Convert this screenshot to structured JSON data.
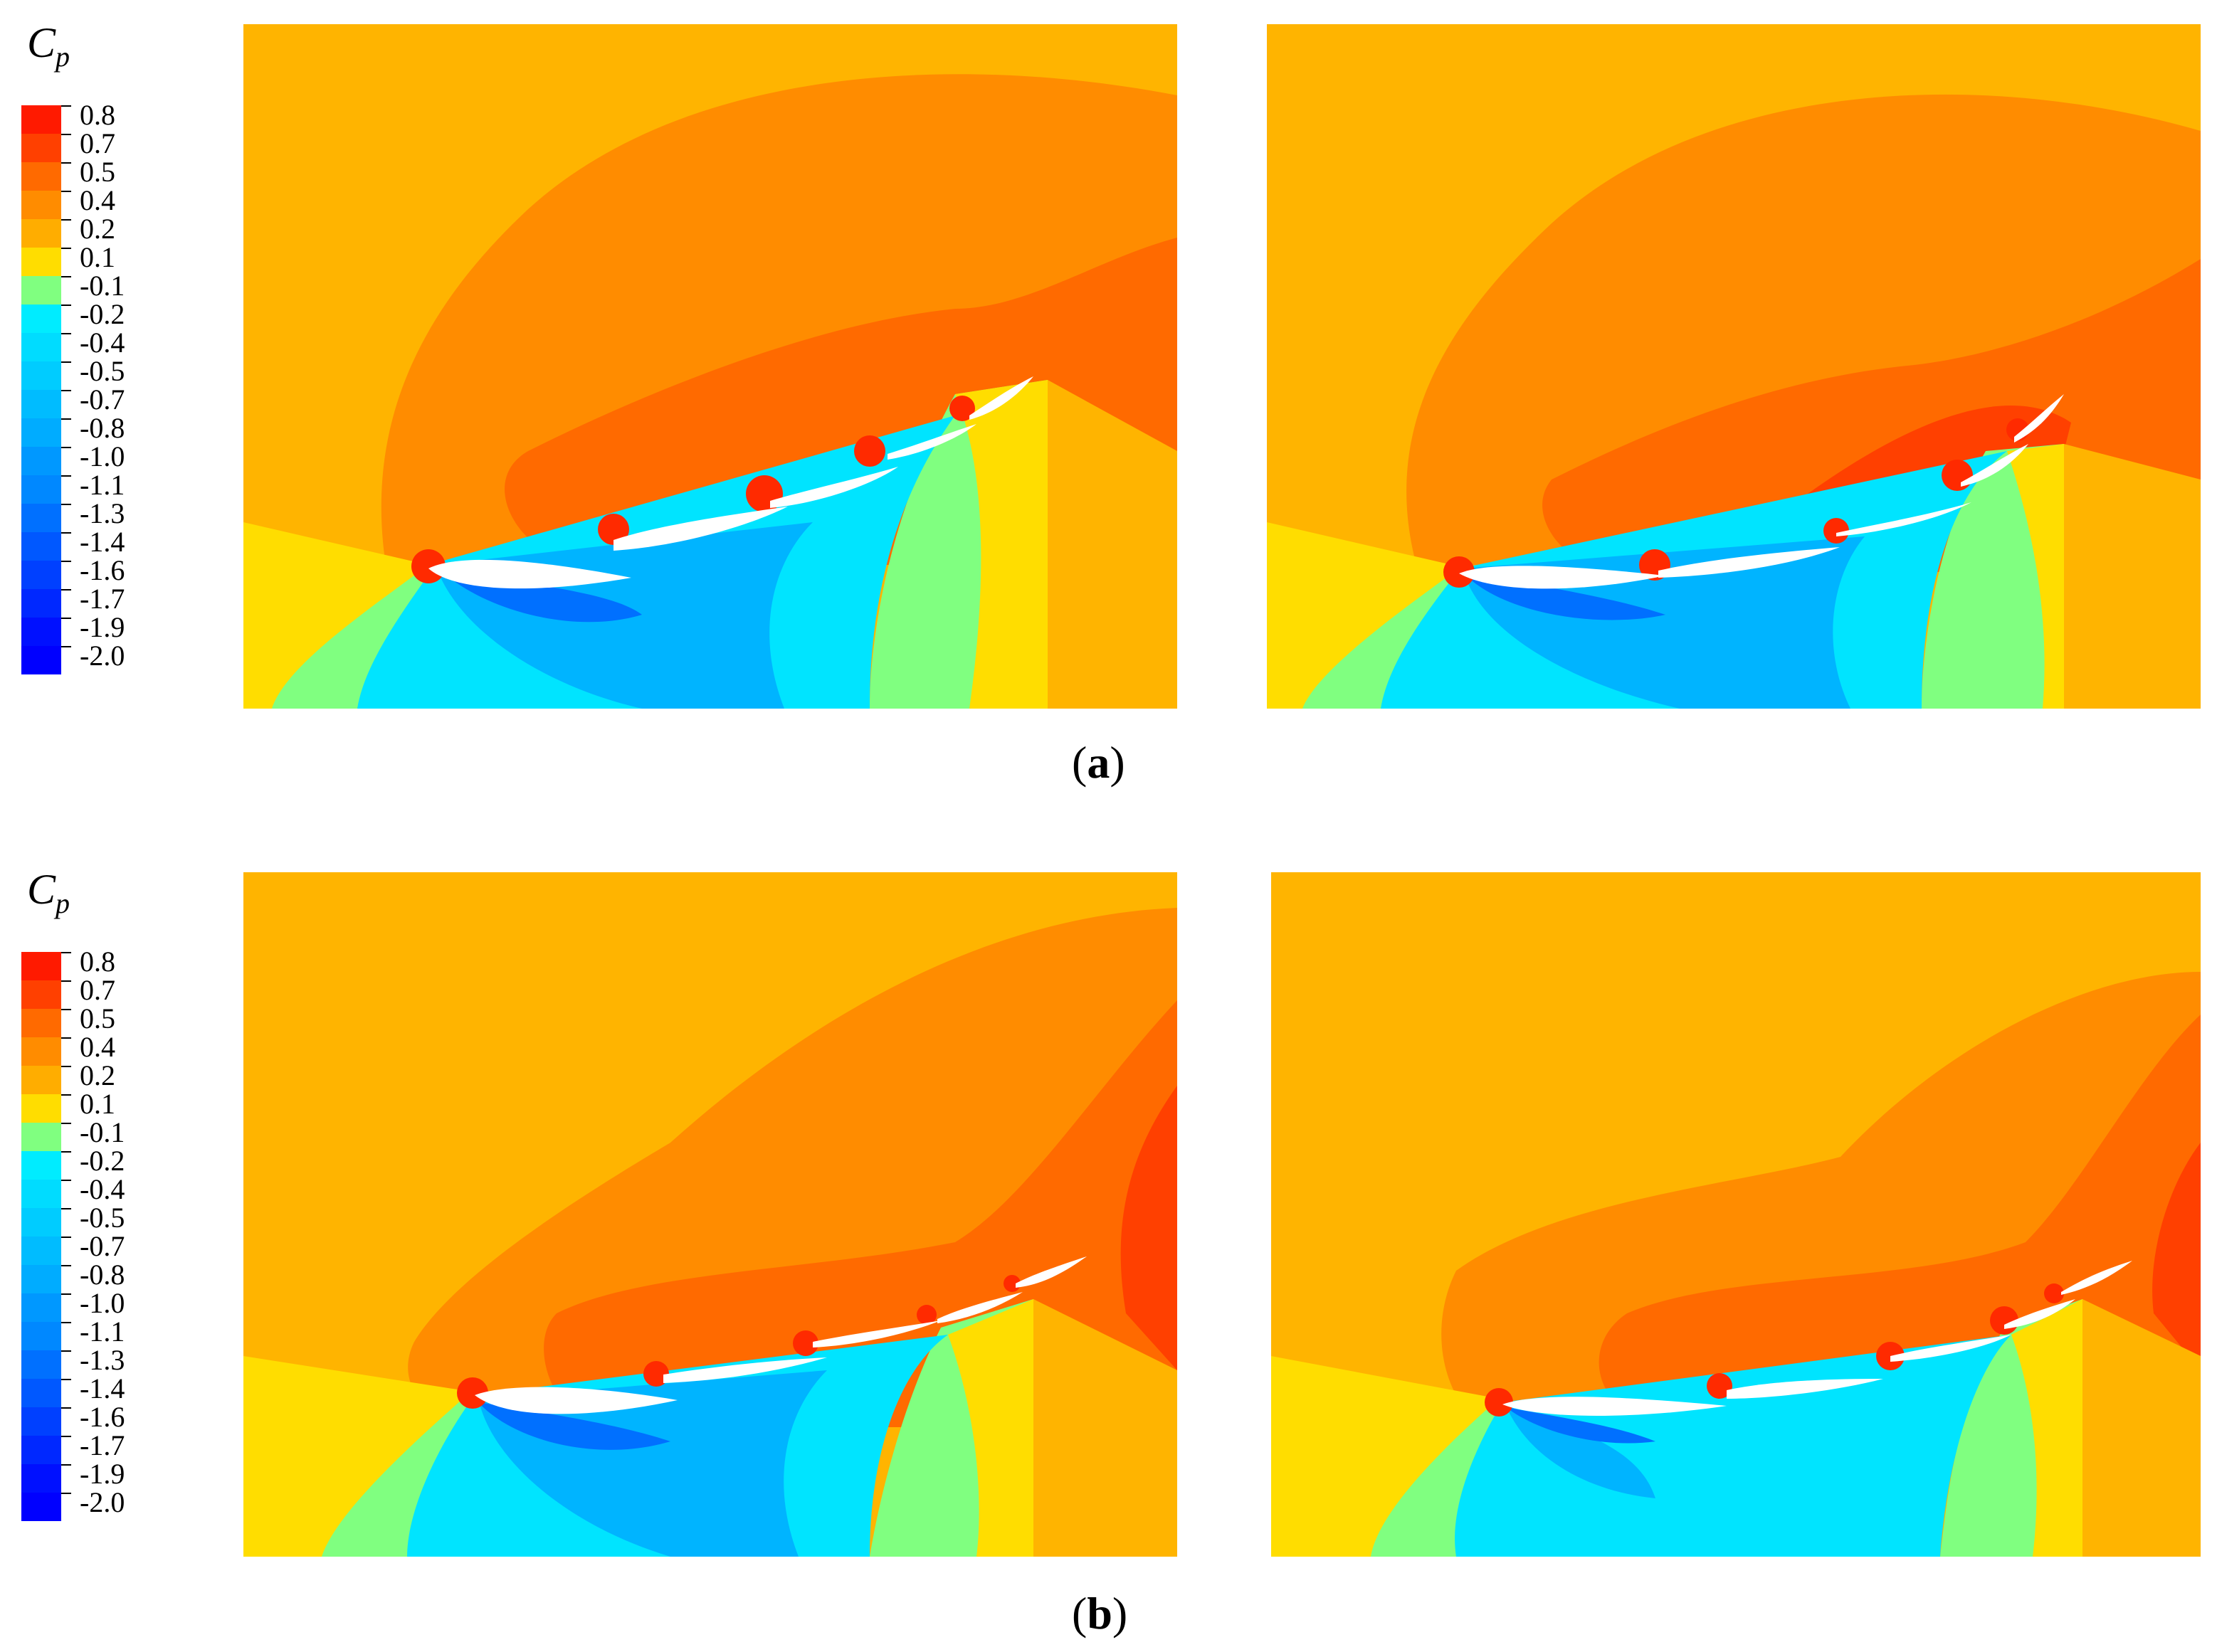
{
  "colorbar": {
    "label": "C",
    "label_sub": "p",
    "levels": [
      "0.8",
      "0.7",
      "0.5",
      "0.4",
      "0.2",
      "0.1",
      "-0.1",
      "-0.2",
      "-0.4",
      "-0.5",
      "-0.7",
      "-0.8",
      "-1.0",
      "-1.1",
      "-1.3",
      "-1.4",
      "-1.6",
      "-1.7",
      "-1.9",
      "-2.0"
    ],
    "colors": [
      "#ff1a00",
      "#ff4000",
      "#ff6a00",
      "#ff8c00",
      "#ffad00",
      "#ffdd00",
      "#80ff80",
      "#00ecff",
      "#00dcff",
      "#00ccff",
      "#00bcff",
      "#00acff",
      "#0098ff",
      "#0088ff",
      "#0070ff",
      "#0058ff",
      "#0040ff",
      "#0028ff",
      "#0010ff",
      "#0000ff"
    ]
  },
  "captions": {
    "a": {
      "open": "(",
      "letter": "a",
      "close": ")"
    },
    "b": {
      "open": "(",
      "letter": "b",
      "close": ")"
    }
  },
  "palette": {
    "far_field": "#ffb400",
    "mid_field": "#ff8c00",
    "high_pressure": "#ff6a00",
    "peak_pressure": "#ff4000",
    "stagnation": "#ff2a00",
    "freestream_low": "#ffdd00",
    "suction_green": "#80ff80",
    "suction_cyan": "#00e4ff",
    "suction_blue": "#00b4ff",
    "suction_deep": "#0070ff",
    "foil": "#ffffff"
  }
}
